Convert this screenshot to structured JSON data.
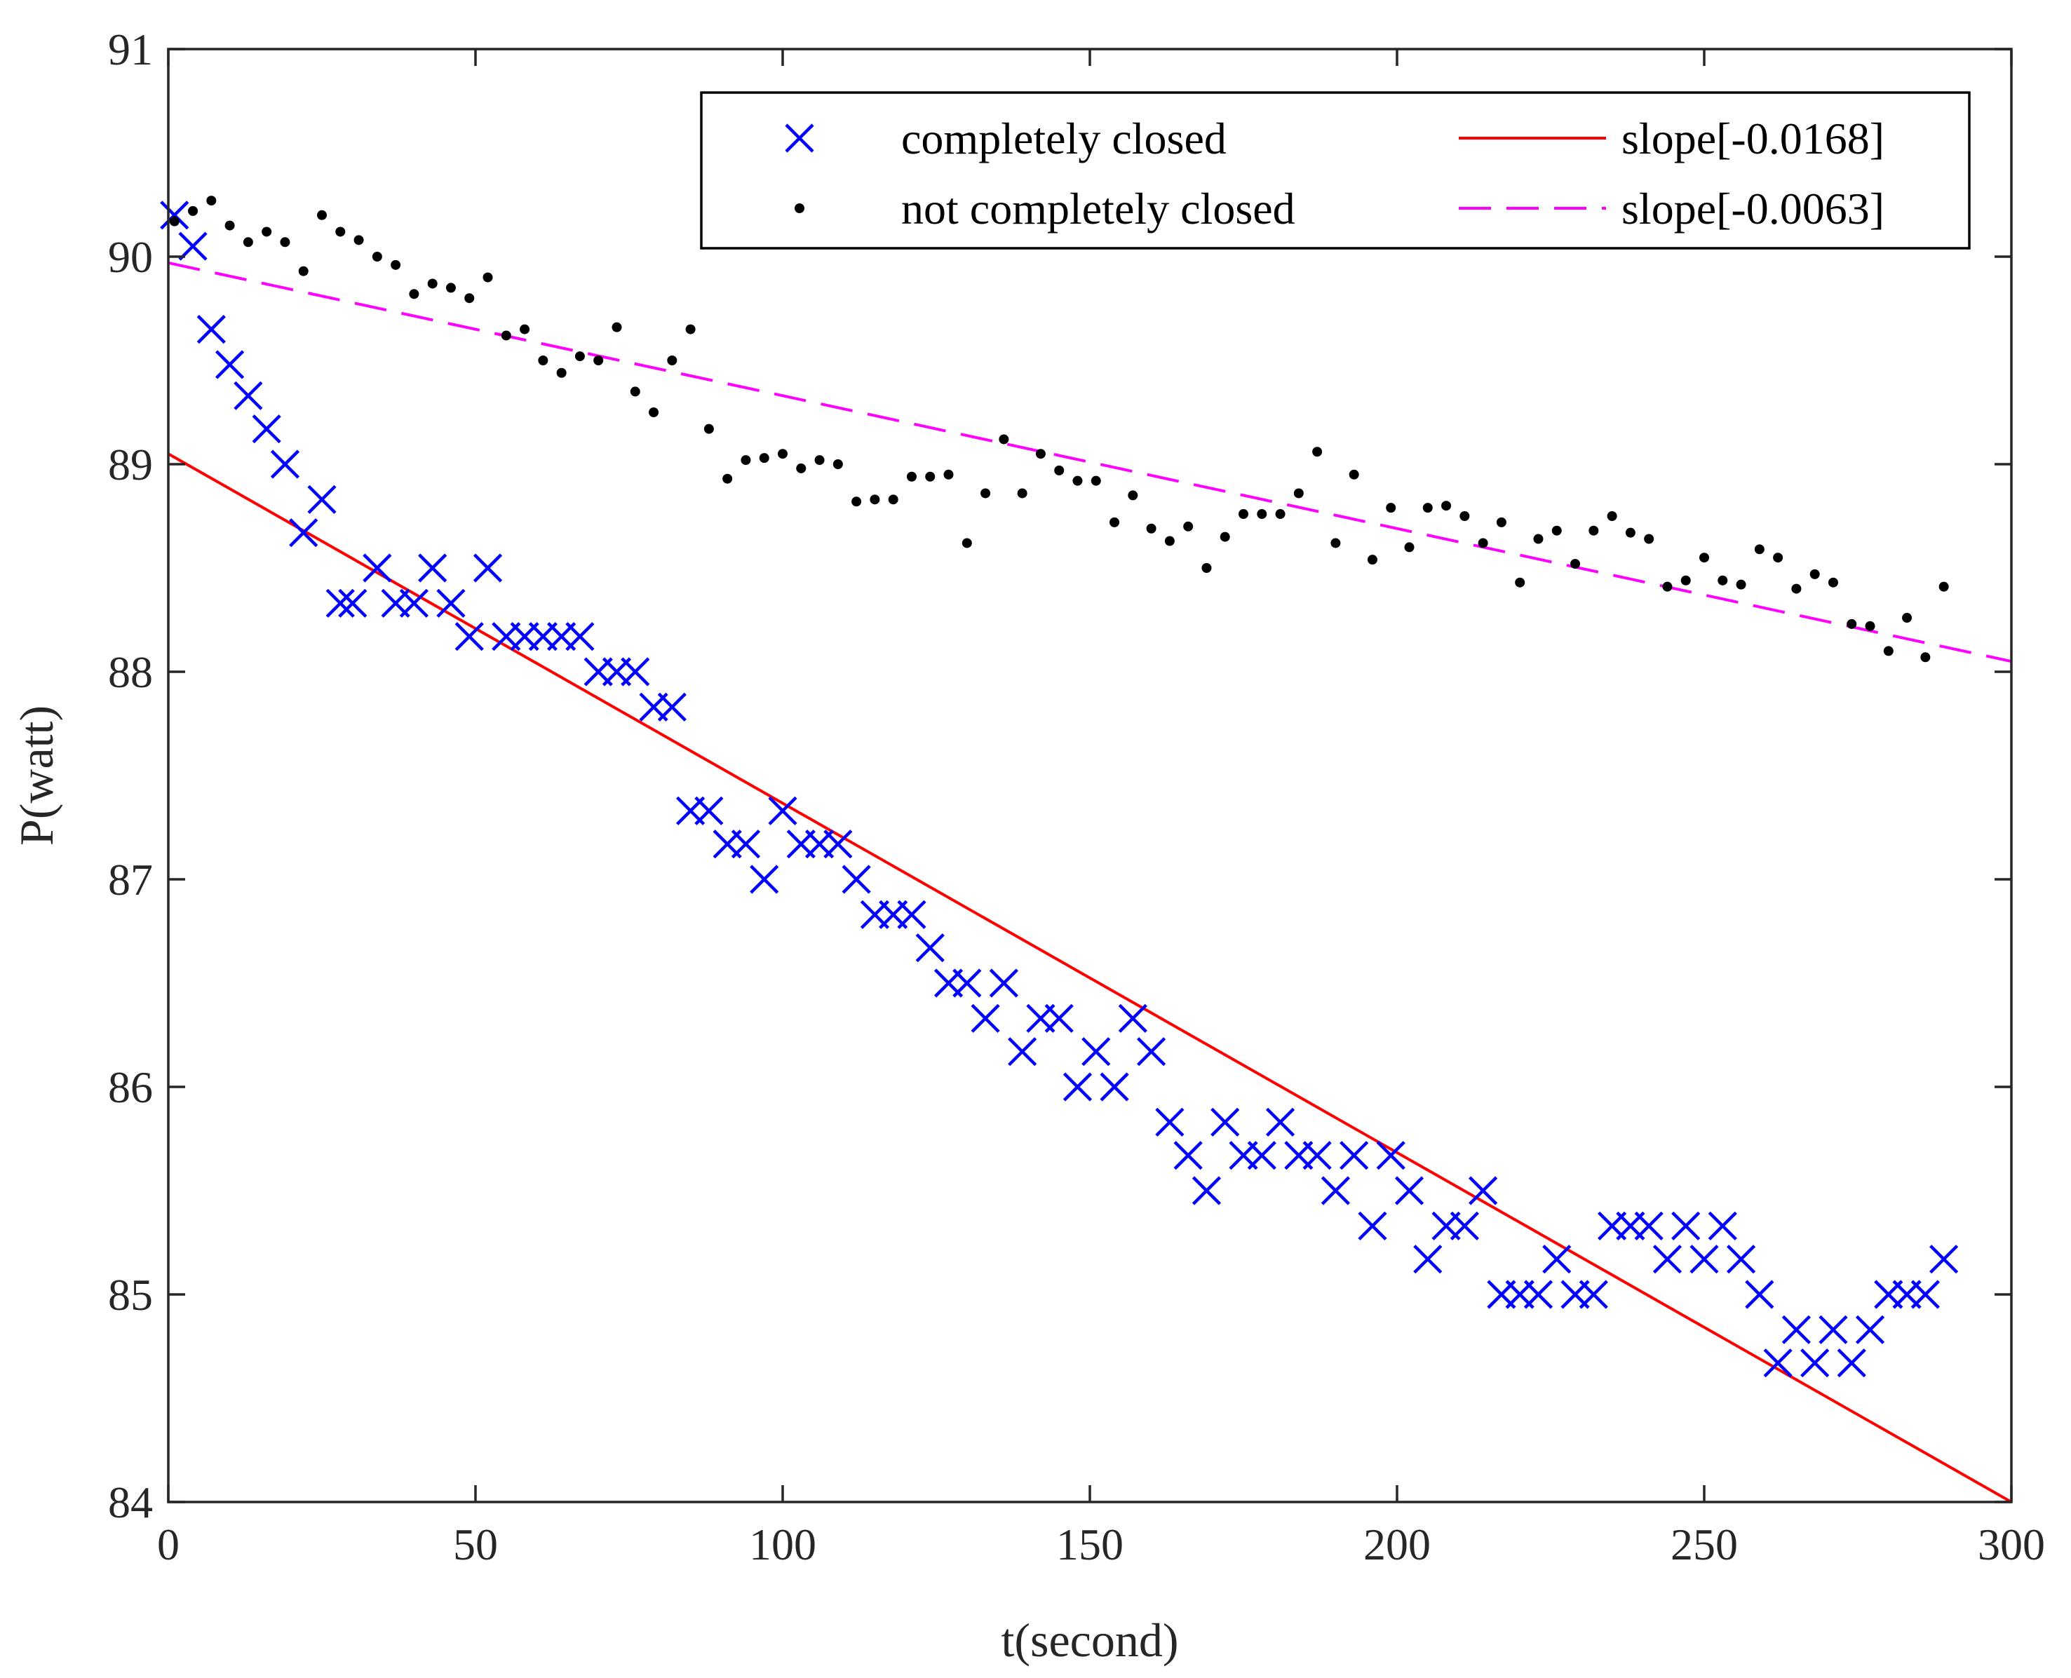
{
  "chart_data": {
    "type": "scatter",
    "title": "",
    "xlabel": "t(second)",
    "ylabel": "P(watt)",
    "xlim": [
      0,
      300
    ],
    "ylim": [
      84,
      91
    ],
    "xticks": [
      0,
      50,
      100,
      150,
      200,
      250,
      300
    ],
    "yticks": [
      84,
      85,
      86,
      87,
      88,
      89,
      90,
      91
    ],
    "grid": false,
    "legend_position": "top-right",
    "series": [
      {
        "name": "completely closed",
        "kind": "scatter",
        "marker": "x",
        "color": "#0000ff",
        "x": [
          1,
          4,
          7,
          10,
          13,
          16,
          19,
          22,
          25,
          28,
          30,
          34,
          37,
          40,
          43,
          46,
          49,
          52,
          55,
          58,
          61,
          64,
          67,
          70,
          73,
          76,
          79,
          82,
          85,
          88,
          91,
          94,
          97,
          100,
          103,
          106,
          109,
          112,
          115,
          118,
          121,
          124,
          127,
          130,
          133,
          136,
          139,
          142,
          145,
          148,
          151,
          154,
          157,
          160,
          163,
          166,
          169,
          172,
          175,
          178,
          181,
          184,
          187,
          190,
          193,
          196,
          199,
          202,
          205,
          208,
          211,
          214,
          217,
          220,
          223,
          226,
          229,
          232,
          235,
          238,
          241,
          244,
          247,
          250,
          253,
          256,
          259,
          262,
          265,
          268,
          271,
          274,
          277,
          280,
          283,
          286,
          289
        ],
        "y": [
          90.2,
          90.05,
          89.65,
          89.48,
          89.33,
          89.17,
          89.0,
          88.67,
          88.83,
          88.33,
          88.33,
          88.5,
          88.33,
          88.33,
          88.5,
          88.33,
          88.17,
          88.5,
          88.17,
          88.17,
          88.17,
          88.17,
          88.17,
          88.0,
          88.0,
          88.0,
          87.83,
          87.83,
          87.33,
          87.33,
          87.17,
          87.17,
          87.0,
          87.33,
          87.17,
          87.17,
          87.17,
          87.0,
          86.83,
          86.83,
          86.83,
          86.67,
          86.5,
          86.5,
          86.33,
          86.5,
          86.17,
          86.33,
          86.33,
          86.0,
          86.17,
          86.0,
          86.33,
          86.17,
          85.83,
          85.67,
          85.5,
          85.83,
          85.67,
          85.67,
          85.83,
          85.67,
          85.67,
          85.5,
          85.67,
          85.33,
          85.67,
          85.5,
          85.17,
          85.33,
          85.33,
          85.5,
          85.0,
          85.0,
          85.0,
          85.17,
          85.0,
          85.0,
          85.33,
          85.33,
          85.33,
          85.17,
          85.33,
          85.17,
          85.33,
          85.17,
          85.0,
          84.67,
          84.83,
          84.67,
          84.83,
          84.67,
          84.83,
          85.0,
          85.0,
          85.0,
          85.17
        ]
      },
      {
        "name": "not completely closed",
        "kind": "scatter",
        "marker": "dot",
        "color": "#000000",
        "x": [
          1,
          4,
          7,
          10,
          13,
          16,
          19,
          22,
          25,
          28,
          31,
          34,
          37,
          40,
          43,
          46,
          49,
          52,
          55,
          58,
          61,
          64,
          67,
          70,
          73,
          76,
          79,
          82,
          85,
          88,
          91,
          94,
          97,
          100,
          103,
          106,
          109,
          112,
          115,
          118,
          121,
          124,
          127,
          130,
          133,
          136,
          139,
          142,
          145,
          148,
          151,
          154,
          157,
          160,
          163,
          166,
          169,
          172,
          175,
          178,
          181,
          184,
          187,
          190,
          193,
          196,
          199,
          202,
          205,
          208,
          211,
          214,
          217,
          220,
          223,
          226,
          229,
          232,
          235,
          238,
          241,
          244,
          247,
          250,
          253,
          256,
          259,
          262,
          265,
          268,
          271,
          274,
          277,
          280,
          283,
          286,
          289
        ],
        "y": [
          90.17,
          90.22,
          90.27,
          90.15,
          90.07,
          90.12,
          90.07,
          89.93,
          90.2,
          90.12,
          90.08,
          90.0,
          89.96,
          89.82,
          89.87,
          89.85,
          89.8,
          89.9,
          89.62,
          89.65,
          89.5,
          89.44,
          89.52,
          89.5,
          89.66,
          89.35,
          89.25,
          89.5,
          89.65,
          89.17,
          88.93,
          89.02,
          89.03,
          89.05,
          88.98,
          89.02,
          89.0,
          88.82,
          88.83,
          88.83,
          88.94,
          88.94,
          88.95,
          88.62,
          88.86,
          89.12,
          88.86,
          89.05,
          88.97,
          88.92,
          88.92,
          88.72,
          88.85,
          88.69,
          88.63,
          88.7,
          88.5,
          88.65,
          88.76,
          88.76,
          88.76,
          88.86,
          89.06,
          88.62,
          88.95,
          88.54,
          88.79,
          88.6,
          88.79,
          88.8,
          88.75,
          88.62,
          88.72,
          88.43,
          88.64,
          88.68,
          88.52,
          88.68,
          88.75,
          88.67,
          88.64,
          88.41,
          88.44,
          88.55,
          88.44,
          88.42,
          88.59,
          88.55,
          88.4,
          88.47,
          88.43,
          88.23,
          88.22,
          88.1,
          88.26,
          88.07,
          88.41
        ]
      },
      {
        "name": "slope[-0.0168]",
        "kind": "line",
        "style": "solid",
        "color": "#ff0000",
        "x": [
          0,
          300
        ],
        "y": [
          89.05,
          84.0
        ]
      },
      {
        "name": "slope[-0.0063]",
        "kind": "line",
        "style": "dashed",
        "color": "#ff00ff",
        "x": [
          0,
          300
        ],
        "y": [
          89.97,
          88.05
        ]
      }
    ],
    "legend": [
      {
        "label": "completely closed",
        "series": 0
      },
      {
        "label": "not completely closed",
        "series": 1
      },
      {
        "label": "slope[-0.0168]",
        "series": 2
      },
      {
        "label": "slope[-0.0063]",
        "series": 3
      }
    ]
  }
}
